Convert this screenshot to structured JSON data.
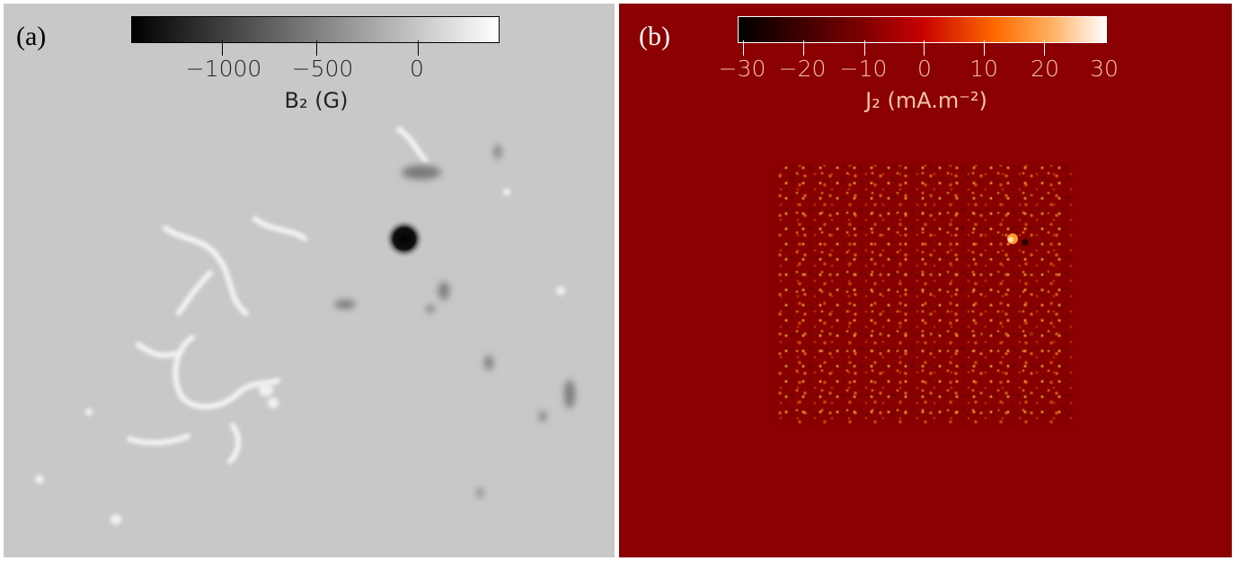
{
  "panels": [
    {
      "label": "(a)",
      "colorbar": {
        "ticks": [
          "−1000",
          "−500",
          "0"
        ],
        "label": "B₂ (G)",
        "range": [
          -1400,
          400
        ]
      }
    },
    {
      "label": "(b)",
      "colorbar": {
        "ticks": [
          "−30",
          "−20",
          "−10",
          "0",
          "10",
          "20",
          "30"
        ],
        "label": "J₂ (mA.m⁻²)",
        "range": [
          -30,
          30
        ]
      }
    }
  ]
}
